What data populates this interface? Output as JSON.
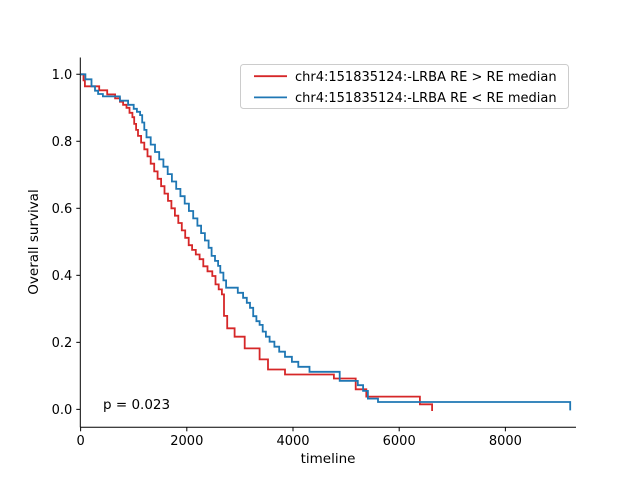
{
  "figure": {
    "background": "#ffffff"
  },
  "chart_data": {
    "type": "line",
    "subtype": "kaplan-meier-step",
    "title": "",
    "xlabel": "timeline",
    "ylabel": "Overall survival",
    "xlim": [
      -6,
      9330
    ],
    "ylim": [
      -0.0535,
      1.05
    ],
    "grid": false,
    "legend_position": "upper right",
    "axis_color": "#000000",
    "legend_border_color": "#cccccc",
    "xticks": {
      "values": [
        0,
        2000,
        4000,
        6000,
        8000
      ],
      "labels": [
        "0",
        "2000",
        "4000",
        "6000",
        "8000"
      ]
    },
    "yticks": {
      "values": [
        0.0,
        0.2,
        0.4,
        0.6,
        0.8,
        1.0
      ],
      "labels": [
        "0.0",
        "0.2",
        "0.4",
        "0.6",
        "0.8",
        "1.0"
      ]
    },
    "annotation": {
      "text": "p = 0.023"
    },
    "series": [
      {
        "id": "re-high",
        "name": "chr4:151835124:-LRBA RE > RE median",
        "color": "#d62728",
        "points": [
          [
            0,
            1.0
          ],
          [
            55,
            0.982
          ],
          [
            80,
            0.964
          ],
          [
            350,
            0.952
          ],
          [
            500,
            0.94
          ],
          [
            650,
            0.928
          ],
          [
            740,
            0.918
          ],
          [
            800,
            0.909
          ],
          [
            865,
            0.9
          ],
          [
            920,
            0.885
          ],
          [
            975,
            0.872
          ],
          [
            1010,
            0.852
          ],
          [
            1045,
            0.834
          ],
          [
            1080,
            0.816
          ],
          [
            1140,
            0.796
          ],
          [
            1200,
            0.776
          ],
          [
            1260,
            0.755
          ],
          [
            1320,
            0.733
          ],
          [
            1385,
            0.71
          ],
          [
            1450,
            0.688
          ],
          [
            1515,
            0.666
          ],
          [
            1580,
            0.644
          ],
          [
            1645,
            0.622
          ],
          [
            1710,
            0.6
          ],
          [
            1775,
            0.578
          ],
          [
            1840,
            0.556
          ],
          [
            1905,
            0.534
          ],
          [
            1970,
            0.512
          ],
          [
            2035,
            0.49
          ],
          [
            2100,
            0.476
          ],
          [
            2170,
            0.462
          ],
          [
            2240,
            0.448
          ],
          [
            2310,
            0.427
          ],
          [
            2390,
            0.412
          ],
          [
            2480,
            0.398
          ],
          [
            2540,
            0.373
          ],
          [
            2600,
            0.358
          ],
          [
            2660,
            0.343
          ],
          [
            2700,
            0.279
          ],
          [
            2760,
            0.242
          ],
          [
            2900,
            0.217
          ],
          [
            3090,
            0.182
          ],
          [
            3370,
            0.149
          ],
          [
            3530,
            0.119
          ],
          [
            3850,
            0.104
          ],
          [
            4770,
            0.092
          ],
          [
            5180,
            0.06
          ],
          [
            5380,
            0.038
          ],
          [
            6390,
            0.015
          ],
          [
            6620,
            -0.005
          ]
        ]
      },
      {
        "id": "re-low",
        "name": "chr4:151835124:-LRBA RE < RE median",
        "color": "#1f77b4",
        "points": [
          [
            0,
            1.0
          ],
          [
            90,
            0.985
          ],
          [
            205,
            0.964
          ],
          [
            270,
            0.951
          ],
          [
            330,
            0.941
          ],
          [
            420,
            0.934
          ],
          [
            740,
            0.921
          ],
          [
            895,
            0.909
          ],
          [
            1000,
            0.897
          ],
          [
            1060,
            0.888
          ],
          [
            1120,
            0.878
          ],
          [
            1160,
            0.856
          ],
          [
            1200,
            0.834
          ],
          [
            1240,
            0.812
          ],
          [
            1320,
            0.79
          ],
          [
            1400,
            0.768
          ],
          [
            1480,
            0.746
          ],
          [
            1560,
            0.724
          ],
          [
            1640,
            0.702
          ],
          [
            1720,
            0.68
          ],
          [
            1800,
            0.658
          ],
          [
            1880,
            0.636
          ],
          [
            1960,
            0.614
          ],
          [
            2040,
            0.592
          ],
          [
            2120,
            0.57
          ],
          [
            2200,
            0.548
          ],
          [
            2270,
            0.526
          ],
          [
            2340,
            0.504
          ],
          [
            2410,
            0.482
          ],
          [
            2466,
            0.458
          ],
          [
            2530,
            0.443
          ],
          [
            2590,
            0.428
          ],
          [
            2630,
            0.408
          ],
          [
            2690,
            0.385
          ],
          [
            2740,
            0.363
          ],
          [
            2960,
            0.348
          ],
          [
            3060,
            0.333
          ],
          [
            3130,
            0.318
          ],
          [
            3190,
            0.303
          ],
          [
            3250,
            0.278
          ],
          [
            3310,
            0.263
          ],
          [
            3370,
            0.252
          ],
          [
            3430,
            0.232
          ],
          [
            3490,
            0.217
          ],
          [
            3560,
            0.202
          ],
          [
            3650,
            0.187
          ],
          [
            3740,
            0.172
          ],
          [
            3850,
            0.157
          ],
          [
            3980,
            0.142
          ],
          [
            4100,
            0.127
          ],
          [
            4310,
            0.112
          ],
          [
            4880,
            0.085
          ],
          [
            5220,
            0.072
          ],
          [
            5320,
            0.055
          ],
          [
            5410,
            0.032
          ],
          [
            5600,
            0.022
          ],
          [
            9220,
            -0.003
          ]
        ]
      }
    ]
  }
}
